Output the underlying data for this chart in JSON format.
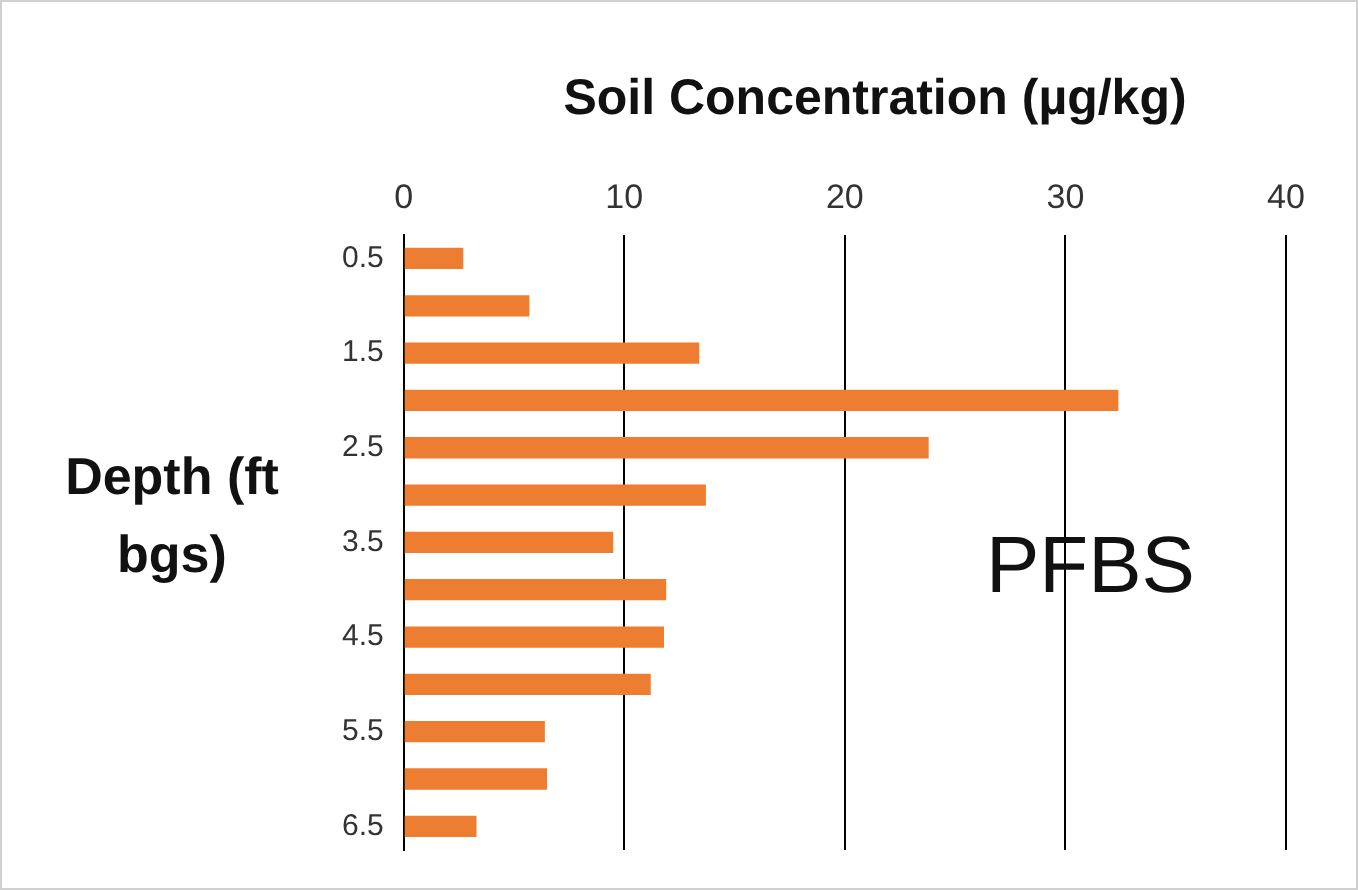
{
  "chart_data": {
    "type": "bar",
    "orientation": "horizontal",
    "xlabel": "Soil Concentration (µg/kg)",
    "ylabel": "Depth (ft bgs)",
    "categories": [
      "0.5",
      null,
      "1.5",
      null,
      "2.5",
      null,
      "3.5",
      null,
      "4.5",
      null,
      "5.5",
      null,
      "6.5"
    ],
    "values": [
      2.7,
      5.7,
      13.4,
      32.4,
      23.8,
      13.7,
      9.5,
      11.9,
      11.8,
      11.2,
      6.4,
      6.5,
      3.3
    ],
    "color": "#ed7d31",
    "xlim": [
      0,
      40
    ],
    "xticks": [
      0,
      10,
      20,
      30,
      40
    ],
    "grid": "x",
    "annotations": [
      "PFBS"
    ]
  }
}
